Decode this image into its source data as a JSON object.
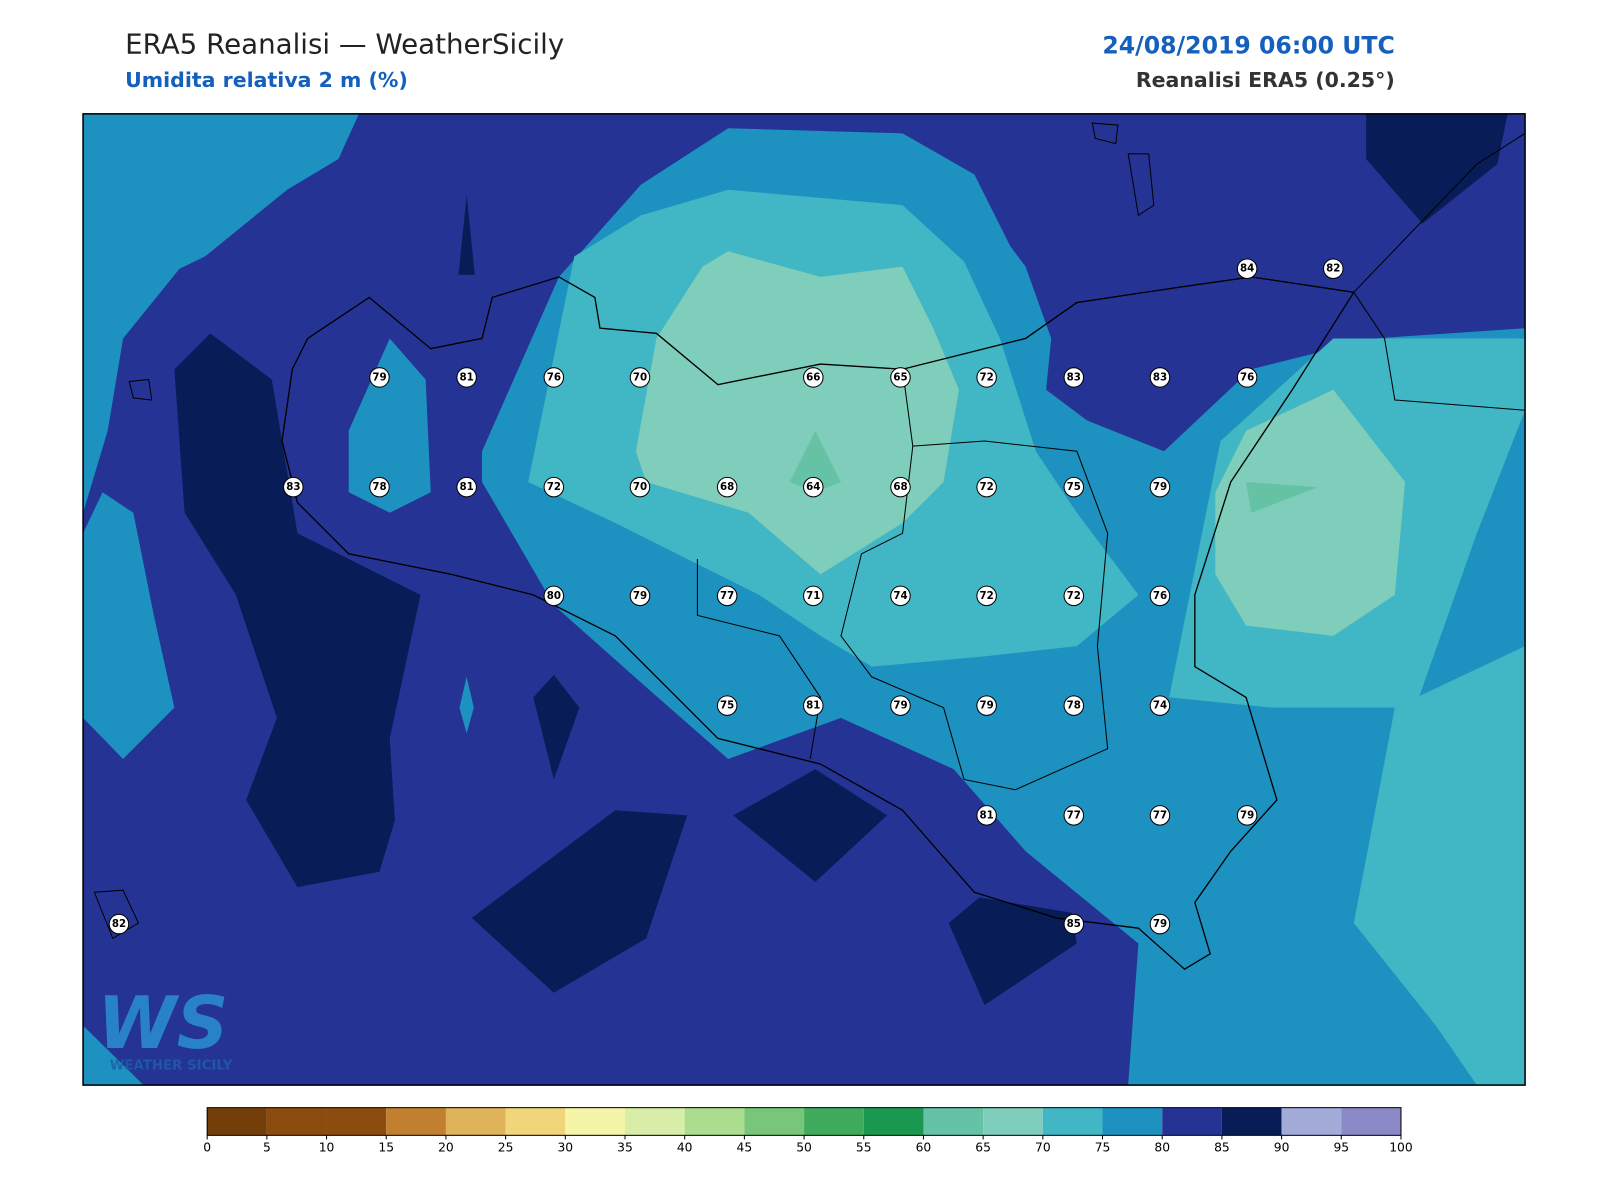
{
  "header": {
    "title": "ERA5 Reanalisi — WeatherSicily",
    "subtitle": "Umidita relativa 2 m (%)",
    "valid_time": "24/08/2019 06:00 UTC",
    "source": "Reanalisi ERA5 (0.25°)"
  },
  "stations": [
    84,
    82,
    79,
    81,
    76,
    70,
    66,
    65,
    72,
    83,
    83,
    76,
    83,
    78,
    81,
    72,
    70,
    68,
    64,
    68,
    72,
    75,
    79,
    80,
    79,
    77,
    71,
    74,
    72,
    72,
    76,
    75,
    81,
    79,
    79,
    78,
    74,
    81,
    77,
    77,
    79,
    82,
    85,
    79
  ],
  "colorbar": {
    "ticks": [
      0,
      5,
      10,
      15,
      20,
      25,
      30,
      35,
      40,
      45,
      50,
      55,
      60,
      65,
      70,
      75,
      80,
      85,
      90,
      95,
      100
    ],
    "colors": [
      "#733e0a",
      "#8c4b0f",
      "#8c4b0f",
      "#c08030",
      "#dfb35a",
      "#f0d57a",
      "#f5f5aa",
      "#d8eda8",
      "#abdd8e",
      "#78c679",
      "#41ab5d",
      "#1a9850",
      "#66c2a4",
      "#7fcdbb",
      "#41b6c4",
      "#1d91c0",
      "#253494",
      "#081d58",
      "#a3acd9",
      "#8b89c6"
    ]
  },
  "logo": {
    "mark": "WS",
    "text": "WEATHER SICILY"
  }
}
